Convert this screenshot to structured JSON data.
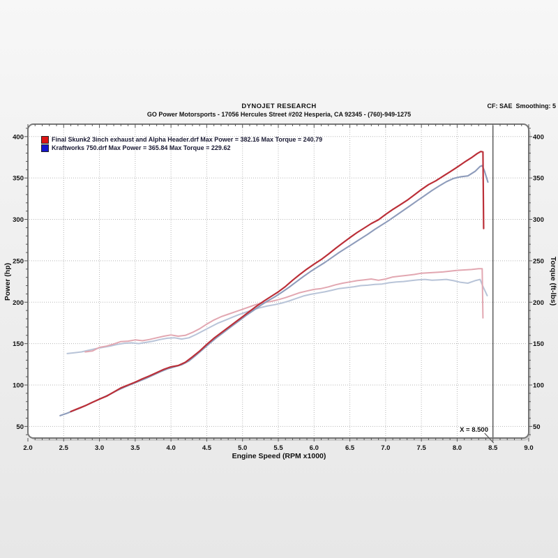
{
  "header": {
    "title": "DYNOJET RESEARCH",
    "subtitle": "GO Power Motorsports - 17056 Hercules Street #202 Hesperia, CA 92345 - (760)-949-1275",
    "right_info": "CF: SAE  Smoothing: 5"
  },
  "legend": {
    "entries": [
      {
        "color": "#dd1414",
        "label": "Final Skunk2 3inch exhaust and Alpha Header.drf Max Power = 382.16 Max Torque = 240.79"
      },
      {
        "color": "#1616cc",
        "label": "Kraftworks 750.drf Max Power = 365.84 Max Torque = 229.62"
      }
    ]
  },
  "chart_data": {
    "type": "line",
    "title": "DYNOJET RESEARCH",
    "xlabel": "Engine Speed (RPM x1000)",
    "ylabel_left": "Power (hp)",
    "ylabel_right": "Torque (ft-lbs)",
    "xlim": [
      2.0,
      9.0
    ],
    "ylim": [
      36,
      415
    ],
    "x_ticks": [
      "2.0",
      "2.5",
      "3.0",
      "3.5",
      "4.0",
      "4.5",
      "5.0",
      "5.5",
      "6.0",
      "6.5",
      "7.0",
      "7.5",
      "8.0",
      "8.5",
      "9.0"
    ],
    "y_ticks_left": [
      "400",
      "350",
      "300",
      "250",
      "200",
      "150",
      "100",
      "50"
    ],
    "y_ticks_right": [
      "400",
      "350",
      "300",
      "250",
      "200",
      "150",
      "100",
      "50"
    ],
    "y_tick_values": [
      400,
      350,
      300,
      250,
      200,
      150,
      100,
      50
    ],
    "grid": true,
    "grid_color": "#b5b5b5",
    "frame_color": "#777777",
    "cursor": {
      "x": 8.5,
      "label": "X = 8.500",
      "color": "#5d5d5d"
    },
    "series": [
      {
        "name": "Kraftworks 750 torque",
        "axis": "torque",
        "color": "#b8c4d8",
        "width": 2,
        "points": [
          [
            2.55,
            138
          ],
          [
            2.65,
            139
          ],
          [
            2.75,
            140
          ],
          [
            2.85,
            142
          ],
          [
            2.95,
            144
          ],
          [
            3.05,
            145.5
          ],
          [
            3.15,
            147
          ],
          [
            3.25,
            149
          ],
          [
            3.35,
            150.5
          ],
          [
            3.45,
            151
          ],
          [
            3.55,
            150
          ],
          [
            3.65,
            151.5
          ],
          [
            3.75,
            153
          ],
          [
            3.85,
            155
          ],
          [
            3.95,
            156.5
          ],
          [
            4.05,
            157
          ],
          [
            4.15,
            155.5
          ],
          [
            4.25,
            157
          ],
          [
            4.35,
            161
          ],
          [
            4.45,
            165.5
          ],
          [
            4.55,
            170
          ],
          [
            4.65,
            174.5
          ],
          [
            4.75,
            178
          ],
          [
            4.85,
            181.5
          ],
          [
            4.95,
            185
          ],
          [
            5.05,
            188
          ],
          [
            5.15,
            191
          ],
          [
            5.25,
            193.5
          ],
          [
            5.35,
            195.5
          ],
          [
            5.45,
            197
          ],
          [
            5.55,
            199
          ],
          [
            5.65,
            201.5
          ],
          [
            5.75,
            204.5
          ],
          [
            5.85,
            207.5
          ],
          [
            5.95,
            209.5
          ],
          [
            6.05,
            211
          ],
          [
            6.15,
            212.5
          ],
          [
            6.25,
            214.5
          ],
          [
            6.35,
            216.5
          ],
          [
            6.45,
            217.5
          ],
          [
            6.55,
            218.5
          ],
          [
            6.65,
            220
          ],
          [
            6.75,
            220.5
          ],
          [
            6.85,
            221.5
          ],
          [
            6.95,
            222
          ],
          [
            7.05,
            223.5
          ],
          [
            7.15,
            224.5
          ],
          [
            7.25,
            225
          ],
          [
            7.35,
            226
          ],
          [
            7.45,
            227
          ],
          [
            7.55,
            227.5
          ],
          [
            7.65,
            226.5
          ],
          [
            7.75,
            227
          ],
          [
            7.85,
            227.5
          ],
          [
            7.95,
            226
          ],
          [
            8.05,
            224
          ],
          [
            8.15,
            223
          ],
          [
            8.25,
            226
          ],
          [
            8.32,
            227.5
          ],
          [
            8.36,
            219
          ],
          [
            8.42,
            208
          ]
        ]
      },
      {
        "name": "Final Skunk2 torque",
        "axis": "torque",
        "color": "#e2a7b1",
        "width": 2,
        "points": [
          [
            2.8,
            140
          ],
          [
            2.9,
            141
          ],
          [
            3.0,
            145.5
          ],
          [
            3.1,
            147
          ],
          [
            3.2,
            149.5
          ],
          [
            3.3,
            152.5
          ],
          [
            3.4,
            153
          ],
          [
            3.5,
            154.5
          ],
          [
            3.6,
            153.5
          ],
          [
            3.7,
            155
          ],
          [
            3.8,
            157
          ],
          [
            3.9,
            159
          ],
          [
            4.0,
            160.5
          ],
          [
            4.1,
            159
          ],
          [
            4.2,
            160
          ],
          [
            4.3,
            163.5
          ],
          [
            4.4,
            168
          ],
          [
            4.5,
            173.5
          ],
          [
            4.6,
            178.5
          ],
          [
            4.7,
            182.5
          ],
          [
            4.8,
            185.5
          ],
          [
            4.9,
            188.5
          ],
          [
            5.0,
            191.5
          ],
          [
            5.1,
            194.5
          ],
          [
            5.2,
            197.5
          ],
          [
            5.3,
            199.5
          ],
          [
            5.4,
            201
          ],
          [
            5.5,
            203
          ],
          [
            5.6,
            205.5
          ],
          [
            5.7,
            208.5
          ],
          [
            5.8,
            211.5
          ],
          [
            5.9,
            213.5
          ],
          [
            6.0,
            215.5
          ],
          [
            6.1,
            216.5
          ],
          [
            6.2,
            218.5
          ],
          [
            6.3,
            221
          ],
          [
            6.4,
            223
          ],
          [
            6.5,
            224.5
          ],
          [
            6.6,
            226
          ],
          [
            6.7,
            227
          ],
          [
            6.8,
            228
          ],
          [
            6.9,
            226.5
          ],
          [
            7.0,
            228
          ],
          [
            7.1,
            230.5
          ],
          [
            7.2,
            231.5
          ],
          [
            7.3,
            232.5
          ],
          [
            7.4,
            233.5
          ],
          [
            7.5,
            235
          ],
          [
            7.6,
            235.5
          ],
          [
            7.7,
            236
          ],
          [
            7.8,
            236.5
          ],
          [
            7.9,
            237.5
          ],
          [
            8.0,
            238.5
          ],
          [
            8.1,
            239
          ],
          [
            8.2,
            239.5
          ],
          [
            8.3,
            240.5
          ],
          [
            8.35,
            240.5
          ],
          [
            8.36,
            181
          ]
        ]
      },
      {
        "name": "Kraftworks 750 power",
        "axis": "power",
        "color": "#8e9cbb",
        "width": 2.1,
        "points": [
          [
            2.45,
            63
          ],
          [
            2.55,
            66
          ],
          [
            2.65,
            69.5
          ],
          [
            2.75,
            73
          ],
          [
            2.85,
            77
          ],
          [
            2.95,
            81
          ],
          [
            3.05,
            85
          ],
          [
            3.15,
            89
          ],
          [
            3.25,
            93.5
          ],
          [
            3.35,
            97.5
          ],
          [
            3.45,
            101
          ],
          [
            3.55,
            104.5
          ],
          [
            3.65,
            108
          ],
          [
            3.75,
            112
          ],
          [
            3.85,
            116
          ],
          [
            3.95,
            119.5
          ],
          [
            4.05,
            122
          ],
          [
            4.15,
            124.5
          ],
          [
            4.25,
            129
          ],
          [
            4.35,
            136
          ],
          [
            4.45,
            143.5
          ],
          [
            4.55,
            151
          ],
          [
            4.65,
            158
          ],
          [
            4.75,
            164.5
          ],
          [
            4.85,
            171
          ],
          [
            4.95,
            177.5
          ],
          [
            5.05,
            184
          ],
          [
            5.15,
            190
          ],
          [
            5.25,
            196
          ],
          [
            5.35,
            201.5
          ],
          [
            5.45,
            206.5
          ],
          [
            5.55,
            212
          ],
          [
            5.65,
            218
          ],
          [
            5.75,
            224.5
          ],
          [
            5.85,
            231
          ],
          [
            5.95,
            237
          ],
          [
            6.05,
            242.5
          ],
          [
            6.15,
            248
          ],
          [
            6.25,
            254
          ],
          [
            6.35,
            260
          ],
          [
            6.45,
            265.5
          ],
          [
            6.55,
            271
          ],
          [
            6.65,
            276.5
          ],
          [
            6.75,
            282
          ],
          [
            6.85,
            288
          ],
          [
            6.95,
            293.5
          ],
          [
            7.05,
            299
          ],
          [
            7.15,
            305
          ],
          [
            7.25,
            311
          ],
          [
            7.35,
            317
          ],
          [
            7.45,
            323
          ],
          [
            7.55,
            329
          ],
          [
            7.65,
            335
          ],
          [
            7.75,
            340.5
          ],
          [
            7.85,
            345.5
          ],
          [
            7.95,
            349.5
          ],
          [
            8.05,
            351.5
          ],
          [
            8.15,
            352.5
          ],
          [
            8.25,
            358
          ],
          [
            8.32,
            364
          ],
          [
            8.35,
            365
          ],
          [
            8.38,
            359
          ],
          [
            8.43,
            345
          ]
        ]
      },
      {
        "name": "Final Skunk2 power",
        "axis": "power",
        "color": "#bb2f38",
        "width": 2.2,
        "points": [
          [
            2.6,
            68
          ],
          [
            2.7,
            71.5
          ],
          [
            2.8,
            75
          ],
          [
            2.9,
            79
          ],
          [
            3.0,
            83
          ],
          [
            3.1,
            86.5
          ],
          [
            3.2,
            91.5
          ],
          [
            3.3,
            96.5
          ],
          [
            3.4,
            100
          ],
          [
            3.5,
            103.5
          ],
          [
            3.6,
            107.5
          ],
          [
            3.7,
            111
          ],
          [
            3.8,
            115
          ],
          [
            3.9,
            119
          ],
          [
            4.0,
            122
          ],
          [
            4.1,
            123.5
          ],
          [
            4.2,
            127.5
          ],
          [
            4.3,
            134
          ],
          [
            4.4,
            141
          ],
          [
            4.5,
            149
          ],
          [
            4.6,
            156.5
          ],
          [
            4.7,
            163
          ],
          [
            4.8,
            169.5
          ],
          [
            4.9,
            176
          ],
          [
            5.0,
            182.5
          ],
          [
            5.1,
            189
          ],
          [
            5.2,
            195.5
          ],
          [
            5.3,
            201.5
          ],
          [
            5.4,
            207
          ],
          [
            5.5,
            212.5
          ],
          [
            5.6,
            219
          ],
          [
            5.7,
            226.5
          ],
          [
            5.8,
            233.5
          ],
          [
            5.9,
            240
          ],
          [
            6.0,
            246
          ],
          [
            6.1,
            251.5
          ],
          [
            6.2,
            258
          ],
          [
            6.3,
            265
          ],
          [
            6.4,
            271.5
          ],
          [
            6.5,
            278
          ],
          [
            6.6,
            284
          ],
          [
            6.7,
            289.5
          ],
          [
            6.8,
            295
          ],
          [
            6.9,
            299.5
          ],
          [
            7.0,
            306
          ],
          [
            7.1,
            312
          ],
          [
            7.2,
            317.5
          ],
          [
            7.3,
            323
          ],
          [
            7.4,
            329.5
          ],
          [
            7.5,
            336
          ],
          [
            7.6,
            342
          ],
          [
            7.7,
            346.5
          ],
          [
            7.8,
            352
          ],
          [
            7.9,
            357.5
          ],
          [
            8.0,
            363
          ],
          [
            8.1,
            369
          ],
          [
            8.2,
            374.5
          ],
          [
            8.28,
            379.5
          ],
          [
            8.33,
            382
          ],
          [
            8.36,
            381.5
          ],
          [
            8.37,
            289
          ]
        ]
      }
    ]
  }
}
